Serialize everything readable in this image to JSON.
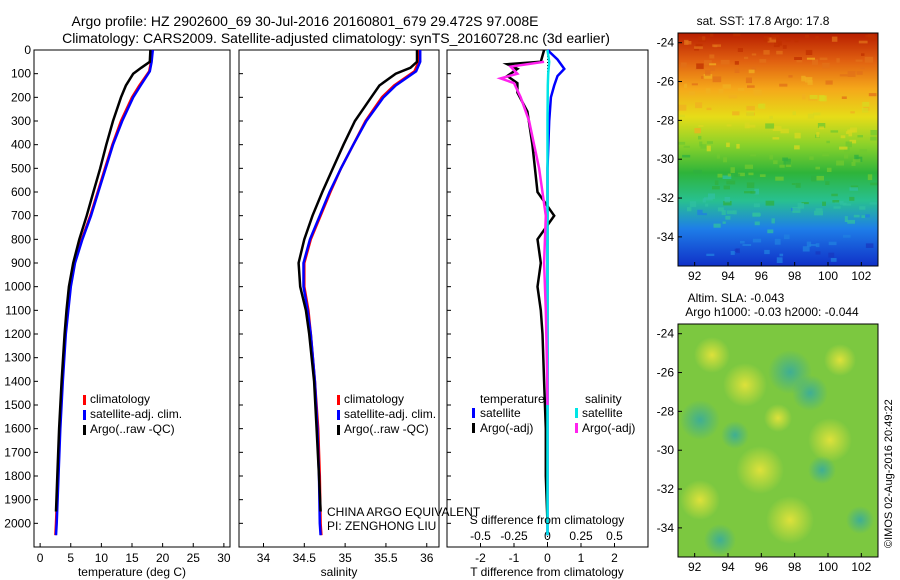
{
  "header": {
    "line1": "Argo profile: HZ 2902600_69 30-Jul-2016 20160801_679 29.472S 97.008E",
    "line2": "Climatology: CARS2009. Satellite-adjusted climatology: synTS_20160728.nc (3d earlier)"
  },
  "colors": {
    "climatology": "#ff0000",
    "satellite": "#0000ff",
    "argo": "#000000",
    "sal_satellite": "#00e5e5",
    "sal_argo": "#ff22ee"
  },
  "chart_data": [
    {
      "type": "line",
      "panel": "temperature",
      "xlabel": "temperature (deg C)",
      "ylabel": "",
      "xlim": [
        -1,
        31
      ],
      "ylim": [
        2100,
        0
      ],
      "xticks": [
        "0",
        "5",
        "10",
        "15",
        "20",
        "25",
        "30"
      ],
      "yticks": [
        "0",
        "100",
        "200",
        "300",
        "400",
        "500",
        "600",
        "700",
        "800",
        "900",
        "1000",
        "1100",
        "1200",
        "1300",
        "1400",
        "1500",
        "1600",
        "1700",
        "1800",
        "1900",
        "2000"
      ],
      "legend": [
        "climatology",
        "satellite-adj. clim.",
        "Argo(..raw -QC)"
      ],
      "series": [
        {
          "name": "climatology",
          "depth": [
            0,
            50,
            90,
            150,
            200,
            300,
            400,
            500,
            600,
            700,
            800,
            900,
            1000,
            1100,
            1200,
            1400,
            1600,
            1800,
            2000,
            2050
          ],
          "values": [
            18.3,
            18.1,
            17.8,
            16.2,
            15.0,
            13.2,
            11.8,
            10.6,
            9.4,
            8.2,
            6.8,
            5.6,
            4.9,
            4.5,
            4.1,
            3.6,
            3.2,
            2.9,
            2.6,
            2.5
          ]
        },
        {
          "name": "satellite-adj. clim.",
          "depth": [
            0,
            50,
            90,
            150,
            200,
            300,
            400,
            500,
            600,
            700,
            800,
            900,
            1000,
            1100,
            1200,
            1400,
            1600,
            1800,
            2000,
            2050
          ],
          "values": [
            18.4,
            18.2,
            17.9,
            16.4,
            15.2,
            13.4,
            11.9,
            10.7,
            9.5,
            8.3,
            6.9,
            5.7,
            5.0,
            4.6,
            4.2,
            3.7,
            3.3,
            3.0,
            2.7,
            2.6
          ]
        },
        {
          "name": "Argo(..raw -QC)",
          "depth": [
            0,
            50,
            75,
            100,
            150,
            200,
            300,
            400,
            500,
            600,
            700,
            800,
            900,
            1000,
            1100,
            1200,
            1400,
            1600,
            1800,
            1950
          ],
          "values": [
            18.0,
            17.9,
            16.5,
            15.2,
            14.0,
            13.2,
            11.9,
            10.8,
            9.8,
            8.7,
            7.6,
            6.4,
            5.4,
            4.7,
            4.3,
            4.0,
            3.5,
            3.1,
            2.8,
            2.6
          ]
        }
      ]
    },
    {
      "type": "line",
      "panel": "salinity",
      "xlabel": "salinity",
      "ylabel": "",
      "xlim": [
        33.7,
        36.15
      ],
      "ylim": [
        2100,
        0
      ],
      "xticks": [
        "34",
        "34.5",
        "35",
        "35.5",
        "36"
      ],
      "legend": [
        "climatology",
        "satellite-adj. clim.",
        "Argo(..raw -QC)"
      ],
      "series": [
        {
          "name": "climatology",
          "depth": [
            0,
            50,
            90,
            150,
            200,
            300,
            400,
            500,
            600,
            700,
            800,
            900,
            1000,
            1100,
            1200,
            1400,
            1600,
            1800,
            2000,
            2050
          ],
          "values": [
            35.9,
            35.9,
            35.85,
            35.6,
            35.45,
            35.25,
            35.1,
            34.95,
            34.82,
            34.7,
            34.58,
            34.5,
            34.5,
            34.55,
            34.58,
            34.63,
            34.67,
            34.69,
            34.7,
            34.71
          ]
        },
        {
          "name": "satellite-adj. clim.",
          "depth": [
            0,
            50,
            90,
            150,
            200,
            300,
            400,
            500,
            600,
            700,
            800,
            900,
            1000,
            1100,
            1200,
            1400,
            1600,
            1800,
            2000,
            2050
          ],
          "values": [
            35.92,
            35.92,
            35.87,
            35.62,
            35.47,
            35.26,
            35.1,
            34.95,
            34.81,
            34.69,
            34.57,
            34.49,
            34.49,
            34.54,
            34.58,
            34.63,
            34.66,
            34.68,
            34.69,
            34.7
          ]
        },
        {
          "name": "Argo(..raw -QC)",
          "depth": [
            0,
            50,
            75,
            100,
            150,
            200,
            300,
            400,
            500,
            600,
            700,
            800,
            900,
            1000,
            1100,
            1200,
            1400,
            1600,
            1800,
            1950
          ],
          "values": [
            35.88,
            35.88,
            35.8,
            35.62,
            35.42,
            35.32,
            35.12,
            34.98,
            34.85,
            34.72,
            34.6,
            34.5,
            34.43,
            34.45,
            34.52,
            34.56,
            34.62,
            34.65,
            34.68,
            34.7
          ]
        }
      ]
    },
    {
      "type": "line",
      "panel": "difference",
      "xlabel": "T difference from climatology",
      "xlabel_top": "S difference from climatology",
      "xlim": [
        -3,
        3
      ],
      "ylim": [
        2100,
        0
      ],
      "xticks": [
        "-2",
        "-1",
        "0",
        "1",
        "2"
      ],
      "xticks_sal": [
        "-0.5",
        "-0.25",
        "0",
        "0.25",
        "0.5"
      ],
      "legend_temperature_title": "temperature",
      "legend_salinity_title": "salinity",
      "legend_labels": [
        "satellite",
        "Argo(-adj)",
        "satellite",
        "Argo(-adj)"
      ],
      "series": [
        {
          "name": "temperature satellite",
          "depth": [
            0,
            40,
            80,
            110,
            150,
            200,
            300,
            500,
            700,
            1000,
            1500,
            2050
          ],
          "values": [
            0,
            0.3,
            0.5,
            0.3,
            0.2,
            0.1,
            0.05,
            0.0,
            0.0,
            0.0,
            0.0,
            0.0
          ]
        },
        {
          "name": "temperature Argo(-adj)",
          "depth": [
            0,
            50,
            60,
            80,
            110,
            140,
            180,
            260,
            400,
            600,
            700,
            800,
            900,
            1000,
            1100,
            1200,
            1400,
            1600,
            1800,
            2000
          ],
          "values": [
            -0.1,
            -0.2,
            -1.2,
            -0.9,
            -1.2,
            -0.9,
            -0.9,
            -0.6,
            -0.45,
            -0.3,
            0.2,
            -0.3,
            -0.2,
            -0.3,
            -0.2,
            -0.15,
            -0.1,
            -0.05,
            -0.05,
            0.0
          ]
        },
        {
          "name": "salinity satellite",
          "depth": [
            0,
            50,
            100,
            150,
            300,
            600,
            1000,
            1500,
            2050
          ],
          "values": [
            0,
            0.05,
            0.02,
            0.01,
            0.0,
            0.0,
            0.0,
            0.0,
            0.0
          ]
        },
        {
          "name": "salinity Argo(-adj)",
          "depth": [
            50,
            70,
            100,
            120,
            140,
            200,
            300,
            500,
            700,
            900,
            1100,
            1300,
            1500
          ],
          "values": [
            -0.1,
            -1.1,
            -0.9,
            -1.4,
            -1.0,
            -0.8,
            -0.55,
            -0.25,
            -0.05,
            -0.1,
            -0.05,
            -0.02,
            0.0
          ]
        }
      ]
    },
    {
      "type": "heatmap",
      "panel": "sst-map",
      "title": "sat. SST: 17.8 Argo: 17.8",
      "xlim": [
        91,
        103
      ],
      "ylim": [
        -35.5,
        -23.5
      ],
      "xticks": [
        "92",
        "94",
        "96",
        "98",
        "100",
        "102"
      ],
      "yticks": [
        "-24",
        "-26",
        "-28",
        "-30",
        "-32",
        "-34"
      ],
      "value_range_description": "warm north (red/orange) to cool south (blue)"
    },
    {
      "type": "heatmap",
      "panel": "sla-map",
      "title_line1": "Altim. SLA: -0.043",
      "title_line2": "Argo h1000: -0.03 h2000: -0.044",
      "xlim": [
        91,
        103
      ],
      "ylim": [
        -35.5,
        -23.5
      ],
      "xticks": [
        "92",
        "94",
        "96",
        "98",
        "100",
        "102"
      ],
      "yticks": [
        "-24",
        "-26",
        "-28",
        "-30",
        "-32",
        "-34"
      ]
    }
  ],
  "annotations": {
    "program": "CHINA ARGO EQUIVALENT",
    "pi": "PI: ZENGHONG LIU",
    "credit": "©IMOS 02-Aug-2016 20:49:22"
  }
}
